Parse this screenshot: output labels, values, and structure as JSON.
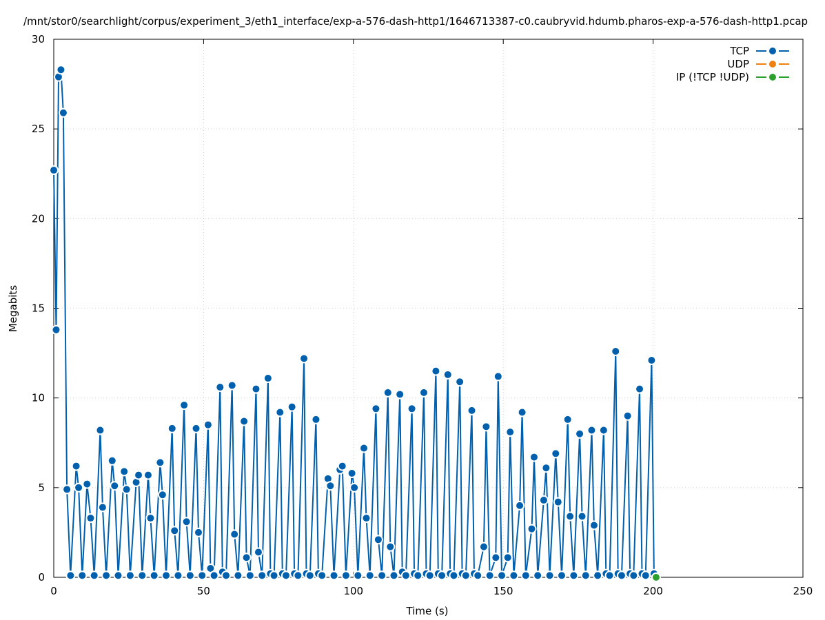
{
  "chart_data": {
    "type": "line",
    "title": "/mnt/stor0/searchlight/corpus/experiment_3/eth1_interface/exp-a-576-dash-http1/1646713387-c0.caubryvid.hdumb.pharos-exp-a-576-dash-http1.pcap",
    "xlabel": "Time (s)",
    "ylabel": "Megabits",
    "xlim": [
      0,
      250
    ],
    "ylim": [
      0,
      30
    ],
    "x_ticks": [
      0,
      50,
      100,
      150,
      200,
      250
    ],
    "y_ticks": [
      0,
      5,
      10,
      15,
      20,
      25,
      30
    ],
    "grid": true,
    "legend_position": "top-right",
    "series": [
      {
        "name": "TCP",
        "color": "#0060ad",
        "points": [
          [
            0,
            22.7
          ],
          [
            0.8,
            13.8
          ],
          [
            1.6,
            27.9
          ],
          [
            2.4,
            28.3
          ],
          [
            3.2,
            25.9
          ],
          [
            4.4,
            4.9
          ],
          [
            5.6,
            0.1
          ],
          [
            7.5,
            6.2
          ],
          [
            8.3,
            5.0
          ],
          [
            9.5,
            0.1
          ],
          [
            11.1,
            5.2
          ],
          [
            12.3,
            3.3
          ],
          [
            13.5,
            0.1
          ],
          [
            15.5,
            8.2
          ],
          [
            16.3,
            3.9
          ],
          [
            17.5,
            0.1
          ],
          [
            19.5,
            6.5
          ],
          [
            20.3,
            5.1
          ],
          [
            21.5,
            0.1
          ],
          [
            23.5,
            5.9
          ],
          [
            24.3,
            4.9
          ],
          [
            25.5,
            0.1
          ],
          [
            27.5,
            5.3
          ],
          [
            28.3,
            5.7
          ],
          [
            29.5,
            0.1
          ],
          [
            31.5,
            5.7
          ],
          [
            32.3,
            3.3
          ],
          [
            33.5,
            0.1
          ],
          [
            35.5,
            6.4
          ],
          [
            36.3,
            4.6
          ],
          [
            37.5,
            0.1
          ],
          [
            39.5,
            8.3
          ],
          [
            40.3,
            2.6
          ],
          [
            41.5,
            0.1
          ],
          [
            43.5,
            9.6
          ],
          [
            44.3,
            3.1
          ],
          [
            45.5,
            0.1
          ],
          [
            47.5,
            8.3
          ],
          [
            48.3,
            2.5
          ],
          [
            49.5,
            0.1
          ],
          [
            51.5,
            8.5
          ],
          [
            52.3,
            0.5
          ],
          [
            53.5,
            0.1
          ],
          [
            55.5,
            10.6
          ],
          [
            56.3,
            0.3
          ],
          [
            57.5,
            0.1
          ],
          [
            59.5,
            10.7
          ],
          [
            60.3,
            2.4
          ],
          [
            61.5,
            0.1
          ],
          [
            63.5,
            8.7
          ],
          [
            64.3,
            1.1
          ],
          [
            65.5,
            0.1
          ],
          [
            67.5,
            10.5
          ],
          [
            68.3,
            1.4
          ],
          [
            69.5,
            0.1
          ],
          [
            71.5,
            11.1
          ],
          [
            72.3,
            0.2
          ],
          [
            73.5,
            0.1
          ],
          [
            75.5,
            9.2
          ],
          [
            76.3,
            0.2
          ],
          [
            77.5,
            0.1
          ],
          [
            79.5,
            9.5
          ],
          [
            80.3,
            0.2
          ],
          [
            81.5,
            0.1
          ],
          [
            83.5,
            12.2
          ],
          [
            84.3,
            0.2
          ],
          [
            85.5,
            0.1
          ],
          [
            87.5,
            8.8
          ],
          [
            88.3,
            0.2
          ],
          [
            89.5,
            0.1
          ],
          [
            91.5,
            5.5
          ],
          [
            92.3,
            5.1
          ],
          [
            93.5,
            0.1
          ],
          [
            95.5,
            6.0
          ],
          [
            96.3,
            6.2
          ],
          [
            97.5,
            0.1
          ],
          [
            99.5,
            5.8
          ],
          [
            100.3,
            5.0
          ],
          [
            101.5,
            0.1
          ],
          [
            103.5,
            7.2
          ],
          [
            104.3,
            3.3
          ],
          [
            105.5,
            0.1
          ],
          [
            107.5,
            9.4
          ],
          [
            108.3,
            2.1
          ],
          [
            109.5,
            0.1
          ],
          [
            111.5,
            10.3
          ],
          [
            112.3,
            1.7
          ],
          [
            113.5,
            0.1
          ],
          [
            115.5,
            10.2
          ],
          [
            116.3,
            0.3
          ],
          [
            117.5,
            0.1
          ],
          [
            119.5,
            9.4
          ],
          [
            120.3,
            0.2
          ],
          [
            121.5,
            0.1
          ],
          [
            123.5,
            10.3
          ],
          [
            124.3,
            0.2
          ],
          [
            125.5,
            0.1
          ],
          [
            127.5,
            11.5
          ],
          [
            128.3,
            0.2
          ],
          [
            129.5,
            0.1
          ],
          [
            131.5,
            11.3
          ],
          [
            132.3,
            0.2
          ],
          [
            133.5,
            0.1
          ],
          [
            135.5,
            10.9
          ],
          [
            136.3,
            0.2
          ],
          [
            137.5,
            0.1
          ],
          [
            139.5,
            9.3
          ],
          [
            140.3,
            0.2
          ],
          [
            141.5,
            0.1
          ],
          [
            143.5,
            1.7
          ],
          [
            144.3,
            8.4
          ],
          [
            145.5,
            0.1
          ],
          [
            147.5,
            1.1
          ],
          [
            148.3,
            11.2
          ],
          [
            149.5,
            0.1
          ],
          [
            151.5,
            1.1
          ],
          [
            152.3,
            8.1
          ],
          [
            153.5,
            0.1
          ],
          [
            155.5,
            4.0
          ],
          [
            156.3,
            9.2
          ],
          [
            157.5,
            0.1
          ],
          [
            159.5,
            2.7
          ],
          [
            160.3,
            6.7
          ],
          [
            161.5,
            0.1
          ],
          [
            163.5,
            4.3
          ],
          [
            164.3,
            6.1
          ],
          [
            165.5,
            0.1
          ],
          [
            167.5,
            6.9
          ],
          [
            168.3,
            4.2
          ],
          [
            169.5,
            0.1
          ],
          [
            171.5,
            8.8
          ],
          [
            172.3,
            3.4
          ],
          [
            173.5,
            0.1
          ],
          [
            175.5,
            8.0
          ],
          [
            176.3,
            3.4
          ],
          [
            177.5,
            0.1
          ],
          [
            179.5,
            8.2
          ],
          [
            180.3,
            2.9
          ],
          [
            181.5,
            0.1
          ],
          [
            183.5,
            8.2
          ],
          [
            184.3,
            0.2
          ],
          [
            185.5,
            0.1
          ],
          [
            187.5,
            12.6
          ],
          [
            188.3,
            0.2
          ],
          [
            189.5,
            0.1
          ],
          [
            191.5,
            9.0
          ],
          [
            192.3,
            0.2
          ],
          [
            193.5,
            0.1
          ],
          [
            195.5,
            10.5
          ],
          [
            196.3,
            0.2
          ],
          [
            197.5,
            0.1
          ],
          [
            199.5,
            12.1
          ],
          [
            200.3,
            0.2
          ]
        ]
      },
      {
        "name": "UDP",
        "color": "#f07f11",
        "points": []
      },
      {
        "name": "IP (!TCP  !UDP)",
        "color": "#2ca02c",
        "points": [
          [
            201,
            0
          ]
        ]
      }
    ]
  }
}
